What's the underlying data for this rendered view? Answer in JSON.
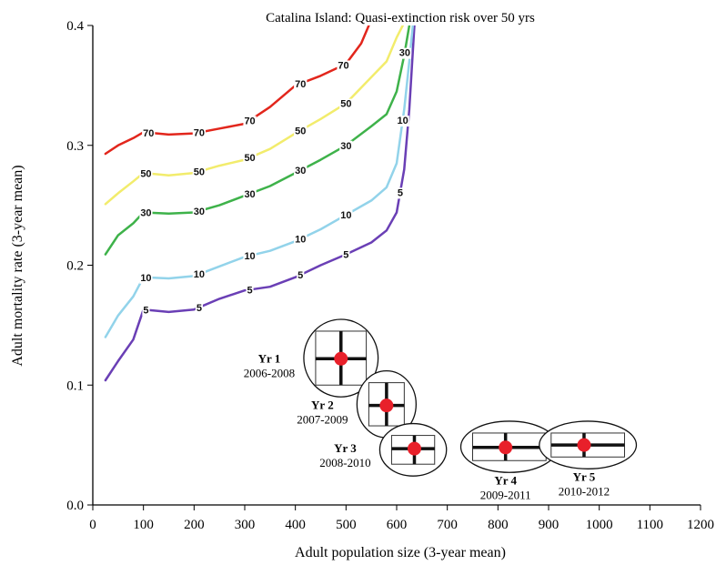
{
  "chart_data": {
    "type": "line",
    "title": "Catalina Island: Quasi-extinction risk over 50 yrs",
    "xlabel": "Adult population size (3-year mean)",
    "ylabel": "Adult mortality rate (3-year mean)",
    "xlim": [
      0,
      1200
    ],
    "ylim": [
      0,
      0.4
    ],
    "xticks": [
      "0",
      "100",
      "200",
      "300",
      "400",
      "500",
      "600",
      "700",
      "800",
      "900",
      "1000",
      "1100",
      "1200"
    ],
    "yticks": [
      "0.0",
      "0.1",
      "0.2",
      "0.3",
      "0.4"
    ],
    "series": [
      {
        "name": "5",
        "color": "#6a3fb5",
        "x": [
          25,
          50,
          80,
          100,
          150,
          200,
          250,
          300,
          350,
          400,
          450,
          500,
          550,
          580,
          600,
          615,
          625,
          635
        ],
        "y": [
          0.104,
          0.12,
          0.138,
          0.163,
          0.161,
          0.163,
          0.172,
          0.179,
          0.182,
          0.19,
          0.2,
          0.209,
          0.219,
          0.229,
          0.244,
          0.28,
          0.33,
          0.4
        ],
        "labels": [
          {
            "text": "5",
            "x": 105
          },
          {
            "text": "5",
            "x": 210
          },
          {
            "text": "5",
            "x": 310
          },
          {
            "text": "5",
            "x": 410
          },
          {
            "text": "5",
            "x": 500
          },
          {
            "text": "5",
            "x": 607
          }
        ]
      },
      {
        "name": "10",
        "color": "#92d3ea",
        "x": [
          25,
          50,
          80,
          100,
          150,
          200,
          250,
          300,
          350,
          400,
          450,
          500,
          550,
          580,
          600,
          615,
          625,
          632
        ],
        "y": [
          0.14,
          0.158,
          0.174,
          0.19,
          0.189,
          0.191,
          0.199,
          0.207,
          0.212,
          0.22,
          0.23,
          0.242,
          0.254,
          0.265,
          0.285,
          0.33,
          0.37,
          0.4
        ],
        "labels": [
          {
            "text": "10",
            "x": 105
          },
          {
            "text": "10",
            "x": 210
          },
          {
            "text": "10",
            "x": 310
          },
          {
            "text": "10",
            "x": 410
          },
          {
            "text": "10",
            "x": 500
          },
          {
            "text": "10",
            "x": 612
          }
        ]
      },
      {
        "name": "30",
        "color": "#3eb24a",
        "x": [
          25,
          50,
          80,
          100,
          150,
          200,
          250,
          300,
          350,
          400,
          450,
          500,
          550,
          580,
          600,
          615,
          625
        ],
        "y": [
          0.209,
          0.225,
          0.235,
          0.244,
          0.243,
          0.244,
          0.25,
          0.258,
          0.266,
          0.277,
          0.288,
          0.3,
          0.316,
          0.326,
          0.345,
          0.375,
          0.4
        ],
        "labels": [
          {
            "text": "30",
            "x": 105
          },
          {
            "text": "30",
            "x": 210
          },
          {
            "text": "30",
            "x": 310
          },
          {
            "text": "30",
            "x": 410
          },
          {
            "text": "30",
            "x": 500
          },
          {
            "text": "30",
            "x": 616
          }
        ]
      },
      {
        "name": "50",
        "color": "#f2ec6c",
        "x": [
          25,
          50,
          80,
          100,
          150,
          200,
          250,
          300,
          350,
          400,
          450,
          500,
          550,
          580,
          600,
          612
        ],
        "y": [
          0.251,
          0.26,
          0.27,
          0.277,
          0.275,
          0.277,
          0.283,
          0.288,
          0.297,
          0.31,
          0.322,
          0.335,
          0.357,
          0.37,
          0.39,
          0.4
        ],
        "labels": [
          {
            "text": "50",
            "x": 105
          },
          {
            "text": "50",
            "x": 210
          },
          {
            "text": "50",
            "x": 310
          },
          {
            "text": "50",
            "x": 410
          },
          {
            "text": "50",
            "x": 500
          }
        ]
      },
      {
        "name": "70",
        "color": "#e2261c",
        "x": [
          25,
          50,
          80,
          100,
          150,
          200,
          250,
          300,
          350,
          400,
          450,
          500,
          530,
          545
        ],
        "y": [
          0.293,
          0.3,
          0.306,
          0.311,
          0.309,
          0.31,
          0.314,
          0.318,
          0.332,
          0.35,
          0.358,
          0.368,
          0.385,
          0.4
        ],
        "labels": [
          {
            "text": "70",
            "x": 110
          },
          {
            "text": "70",
            "x": 210
          },
          {
            "text": "70",
            "x": 310
          },
          {
            "text": "70",
            "x": 410
          },
          {
            "text": "70",
            "x": 495
          }
        ]
      }
    ],
    "observations": [
      {
        "label": "Yr 1",
        "range": "2006-2008",
        "x": 490,
        "y": 0.122,
        "x_lo": 440,
        "x_hi": 540,
        "y_lo": 0.1,
        "y_hi": 0.145
      },
      {
        "label": "Yr 2",
        "range": "2007-2009",
        "x": 580,
        "y": 0.083,
        "x_lo": 545,
        "x_hi": 615,
        "y_lo": 0.066,
        "y_hi": 0.102
      },
      {
        "label": "Yr 3",
        "range": "2008-2010",
        "x": 635,
        "y": 0.047,
        "x_lo": 590,
        "x_hi": 675,
        "y_lo": 0.034,
        "y_hi": 0.058
      },
      {
        "label": "Yr 4",
        "range": "2009-2011",
        "x": 815,
        "y": 0.048,
        "x_lo": 750,
        "x_hi": 895,
        "y_lo": 0.037,
        "y_hi": 0.06
      },
      {
        "label": "Yr 5",
        "range": "2010-2012",
        "x": 970,
        "y": 0.05,
        "x_lo": 905,
        "x_hi": 1050,
        "y_lo": 0.04,
        "y_hi": 0.06
      }
    ],
    "marker_color": "#e8202a",
    "grid": false,
    "legend": "none"
  }
}
